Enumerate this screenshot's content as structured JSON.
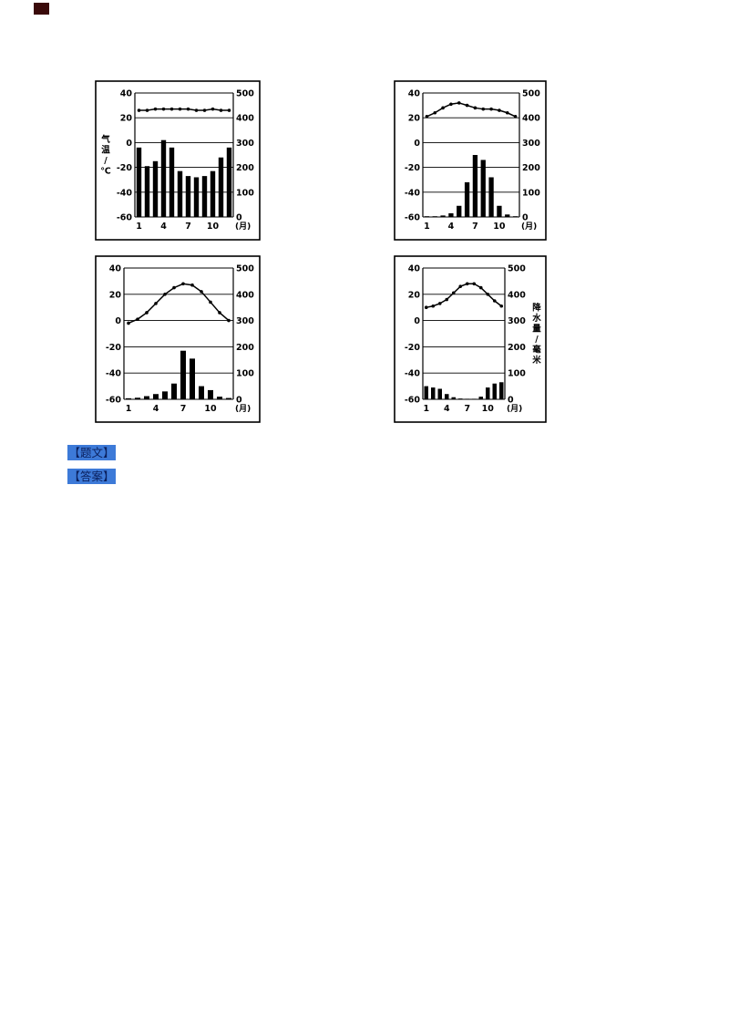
{
  "page": {
    "background": "#ffffff",
    "corner_mark_color": "#3a0a0a",
    "link_bg_color": "#3d7ad8"
  },
  "links": [
    {
      "label": "【题文】"
    },
    {
      "label": "【答案】"
    }
  ],
  "chart_data": [
    {
      "name": "climate-chart-top-left",
      "type": "bar+line",
      "months": [
        1,
        2,
        3,
        4,
        5,
        6,
        7,
        8,
        9,
        10,
        11,
        12
      ],
      "x_tick_labels": [
        "1",
        "4",
        "7",
        "10"
      ],
      "x_unit": "(月)",
      "temp_axis": {
        "title": "气温/℃",
        "ticks": [
          40,
          20,
          0,
          -20,
          -40,
          -60
        ],
        "range": [
          -60,
          40
        ]
      },
      "precip_axis": {
        "title": "",
        "ticks": [
          500,
          400,
          300,
          200,
          100,
          0
        ],
        "range": [
          0,
          500
        ]
      },
      "series": [
        {
          "name": "temperature",
          "type": "line",
          "values": [
            26,
            26,
            27,
            27,
            27,
            27,
            27,
            26,
            26,
            27,
            26,
            26
          ]
        },
        {
          "name": "precipitation",
          "type": "bar",
          "values": [
            280,
            205,
            225,
            310,
            280,
            185,
            165,
            160,
            165,
            185,
            240,
            280
          ]
        }
      ]
    },
    {
      "name": "climate-chart-top-right",
      "type": "bar+line",
      "months": [
        1,
        2,
        3,
        4,
        5,
        6,
        7,
        8,
        9,
        10,
        11,
        12
      ],
      "x_tick_labels": [
        "1",
        "4",
        "7",
        "10"
      ],
      "x_unit": "(月)",
      "temp_axis": {
        "title": "",
        "ticks": [
          40,
          20,
          0,
          -20,
          -40,
          -60
        ],
        "range": [
          -60,
          40
        ]
      },
      "precip_axis": {
        "title": "",
        "ticks": [
          500,
          400,
          300,
          200,
          100,
          0
        ],
        "range": [
          0,
          500
        ]
      },
      "series": [
        {
          "name": "temperature",
          "type": "line",
          "values": [
            21,
            24,
            28,
            31,
            32,
            30,
            28,
            27,
            27,
            26,
            24,
            21
          ]
        },
        {
          "name": "precipitation",
          "type": "bar",
          "values": [
            3,
            3,
            6,
            15,
            45,
            140,
            250,
            230,
            160,
            45,
            10,
            3
          ]
        }
      ]
    },
    {
      "name": "climate-chart-bottom-left",
      "type": "bar+line",
      "months": [
        1,
        2,
        3,
        4,
        5,
        6,
        7,
        8,
        9,
        10,
        11,
        12
      ],
      "x_tick_labels": [
        "1",
        "4",
        "7",
        "10"
      ],
      "x_unit": "(月)",
      "temp_axis": {
        "title": "",
        "ticks": [
          40,
          20,
          0,
          -20,
          -40,
          -60
        ],
        "range": [
          -60,
          40
        ]
      },
      "precip_axis": {
        "title": "",
        "ticks": [
          500,
          400,
          300,
          200,
          100,
          0
        ],
        "range": [
          0,
          500
        ]
      },
      "series": [
        {
          "name": "temperature",
          "type": "line",
          "values": [
            -2,
            1,
            6,
            13,
            20,
            25,
            28,
            27,
            22,
            14,
            6,
            0
          ]
        },
        {
          "name": "precipitation",
          "type": "bar",
          "values": [
            4,
            6,
            12,
            20,
            30,
            60,
            185,
            155,
            50,
            35,
            10,
            5
          ]
        }
      ]
    },
    {
      "name": "climate-chart-bottom-right",
      "type": "bar+line",
      "months": [
        1,
        2,
        3,
        4,
        5,
        6,
        7,
        8,
        9,
        10,
        11,
        12
      ],
      "x_tick_labels": [
        "1",
        "4",
        "7",
        "10"
      ],
      "x_unit": "(月)",
      "temp_axis": {
        "title": "",
        "ticks": [
          40,
          20,
          0,
          -20,
          -40,
          -60
        ],
        "range": [
          -60,
          40
        ]
      },
      "precip_axis": {
        "title": "降水量/毫米",
        "ticks": [
          500,
          400,
          300,
          200,
          100,
          0
        ],
        "range": [
          0,
          500
        ]
      },
      "series": [
        {
          "name": "temperature",
          "type": "line",
          "values": [
            10,
            11,
            13,
            16,
            21,
            26,
            28,
            28,
            25,
            20,
            15,
            11
          ]
        },
        {
          "name": "precipitation",
          "type": "bar",
          "values": [
            50,
            45,
            40,
            20,
            8,
            3,
            2,
            2,
            10,
            45,
            60,
            65
          ]
        }
      ]
    }
  ]
}
